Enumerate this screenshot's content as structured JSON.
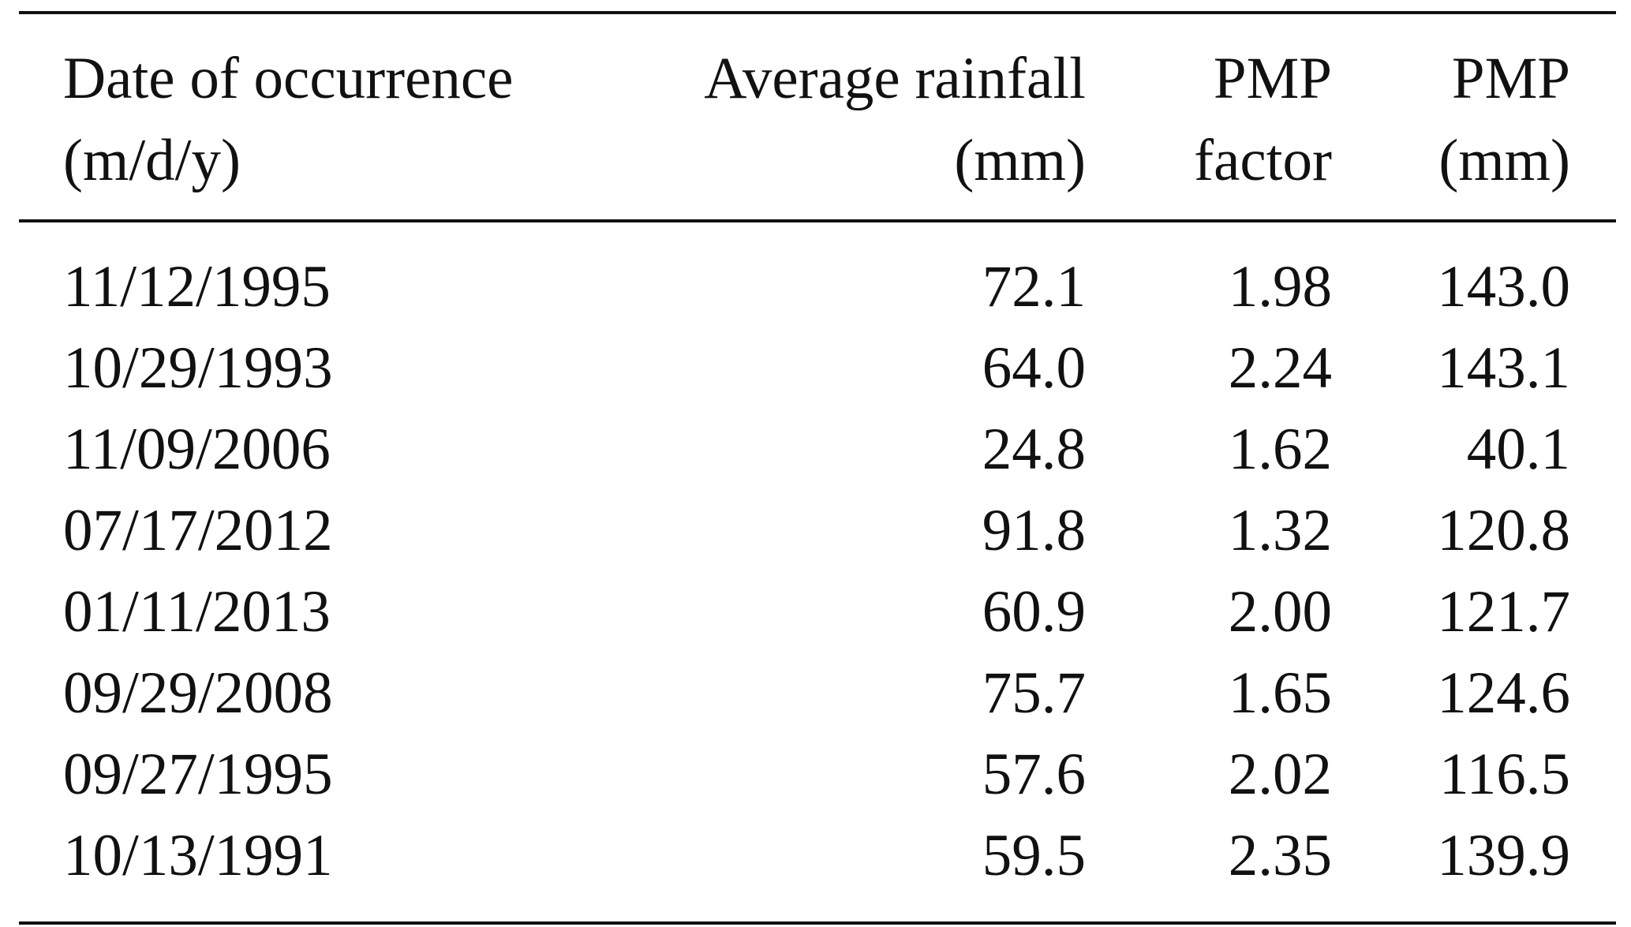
{
  "table": {
    "headers": {
      "date": [
        "Date of occurrence",
        "(m/d/y)"
      ],
      "avg": [
        "Average rainfall",
        "(mm)"
      ],
      "factor": [
        "PMP",
        "factor"
      ],
      "pmp": [
        "PMP",
        "(mm)"
      ]
    },
    "rows": [
      {
        "date": "11/12/1995",
        "avg": "72.1",
        "factor": "1.98",
        "pmp": "143.0"
      },
      {
        "date": "10/29/1993",
        "avg": "64.0",
        "factor": "2.24",
        "pmp": "143.1"
      },
      {
        "date": "11/09/2006",
        "avg": "24.8",
        "factor": "1.62",
        "pmp": "40.1"
      },
      {
        "date": "07/17/2012",
        "avg": "91.8",
        "factor": "1.32",
        "pmp": "120.8"
      },
      {
        "date": "01/11/2013",
        "avg": "60.9",
        "factor": "2.00",
        "pmp": "121.7"
      },
      {
        "date": "09/29/2008",
        "avg": "75.7",
        "factor": "1.65",
        "pmp": "124.6"
      },
      {
        "date": "09/27/1995",
        "avg": "57.6",
        "factor": "2.02",
        "pmp": "116.5"
      },
      {
        "date": "10/13/1991",
        "avg": "59.5",
        "factor": "2.35",
        "pmp": "139.9"
      }
    ]
  }
}
